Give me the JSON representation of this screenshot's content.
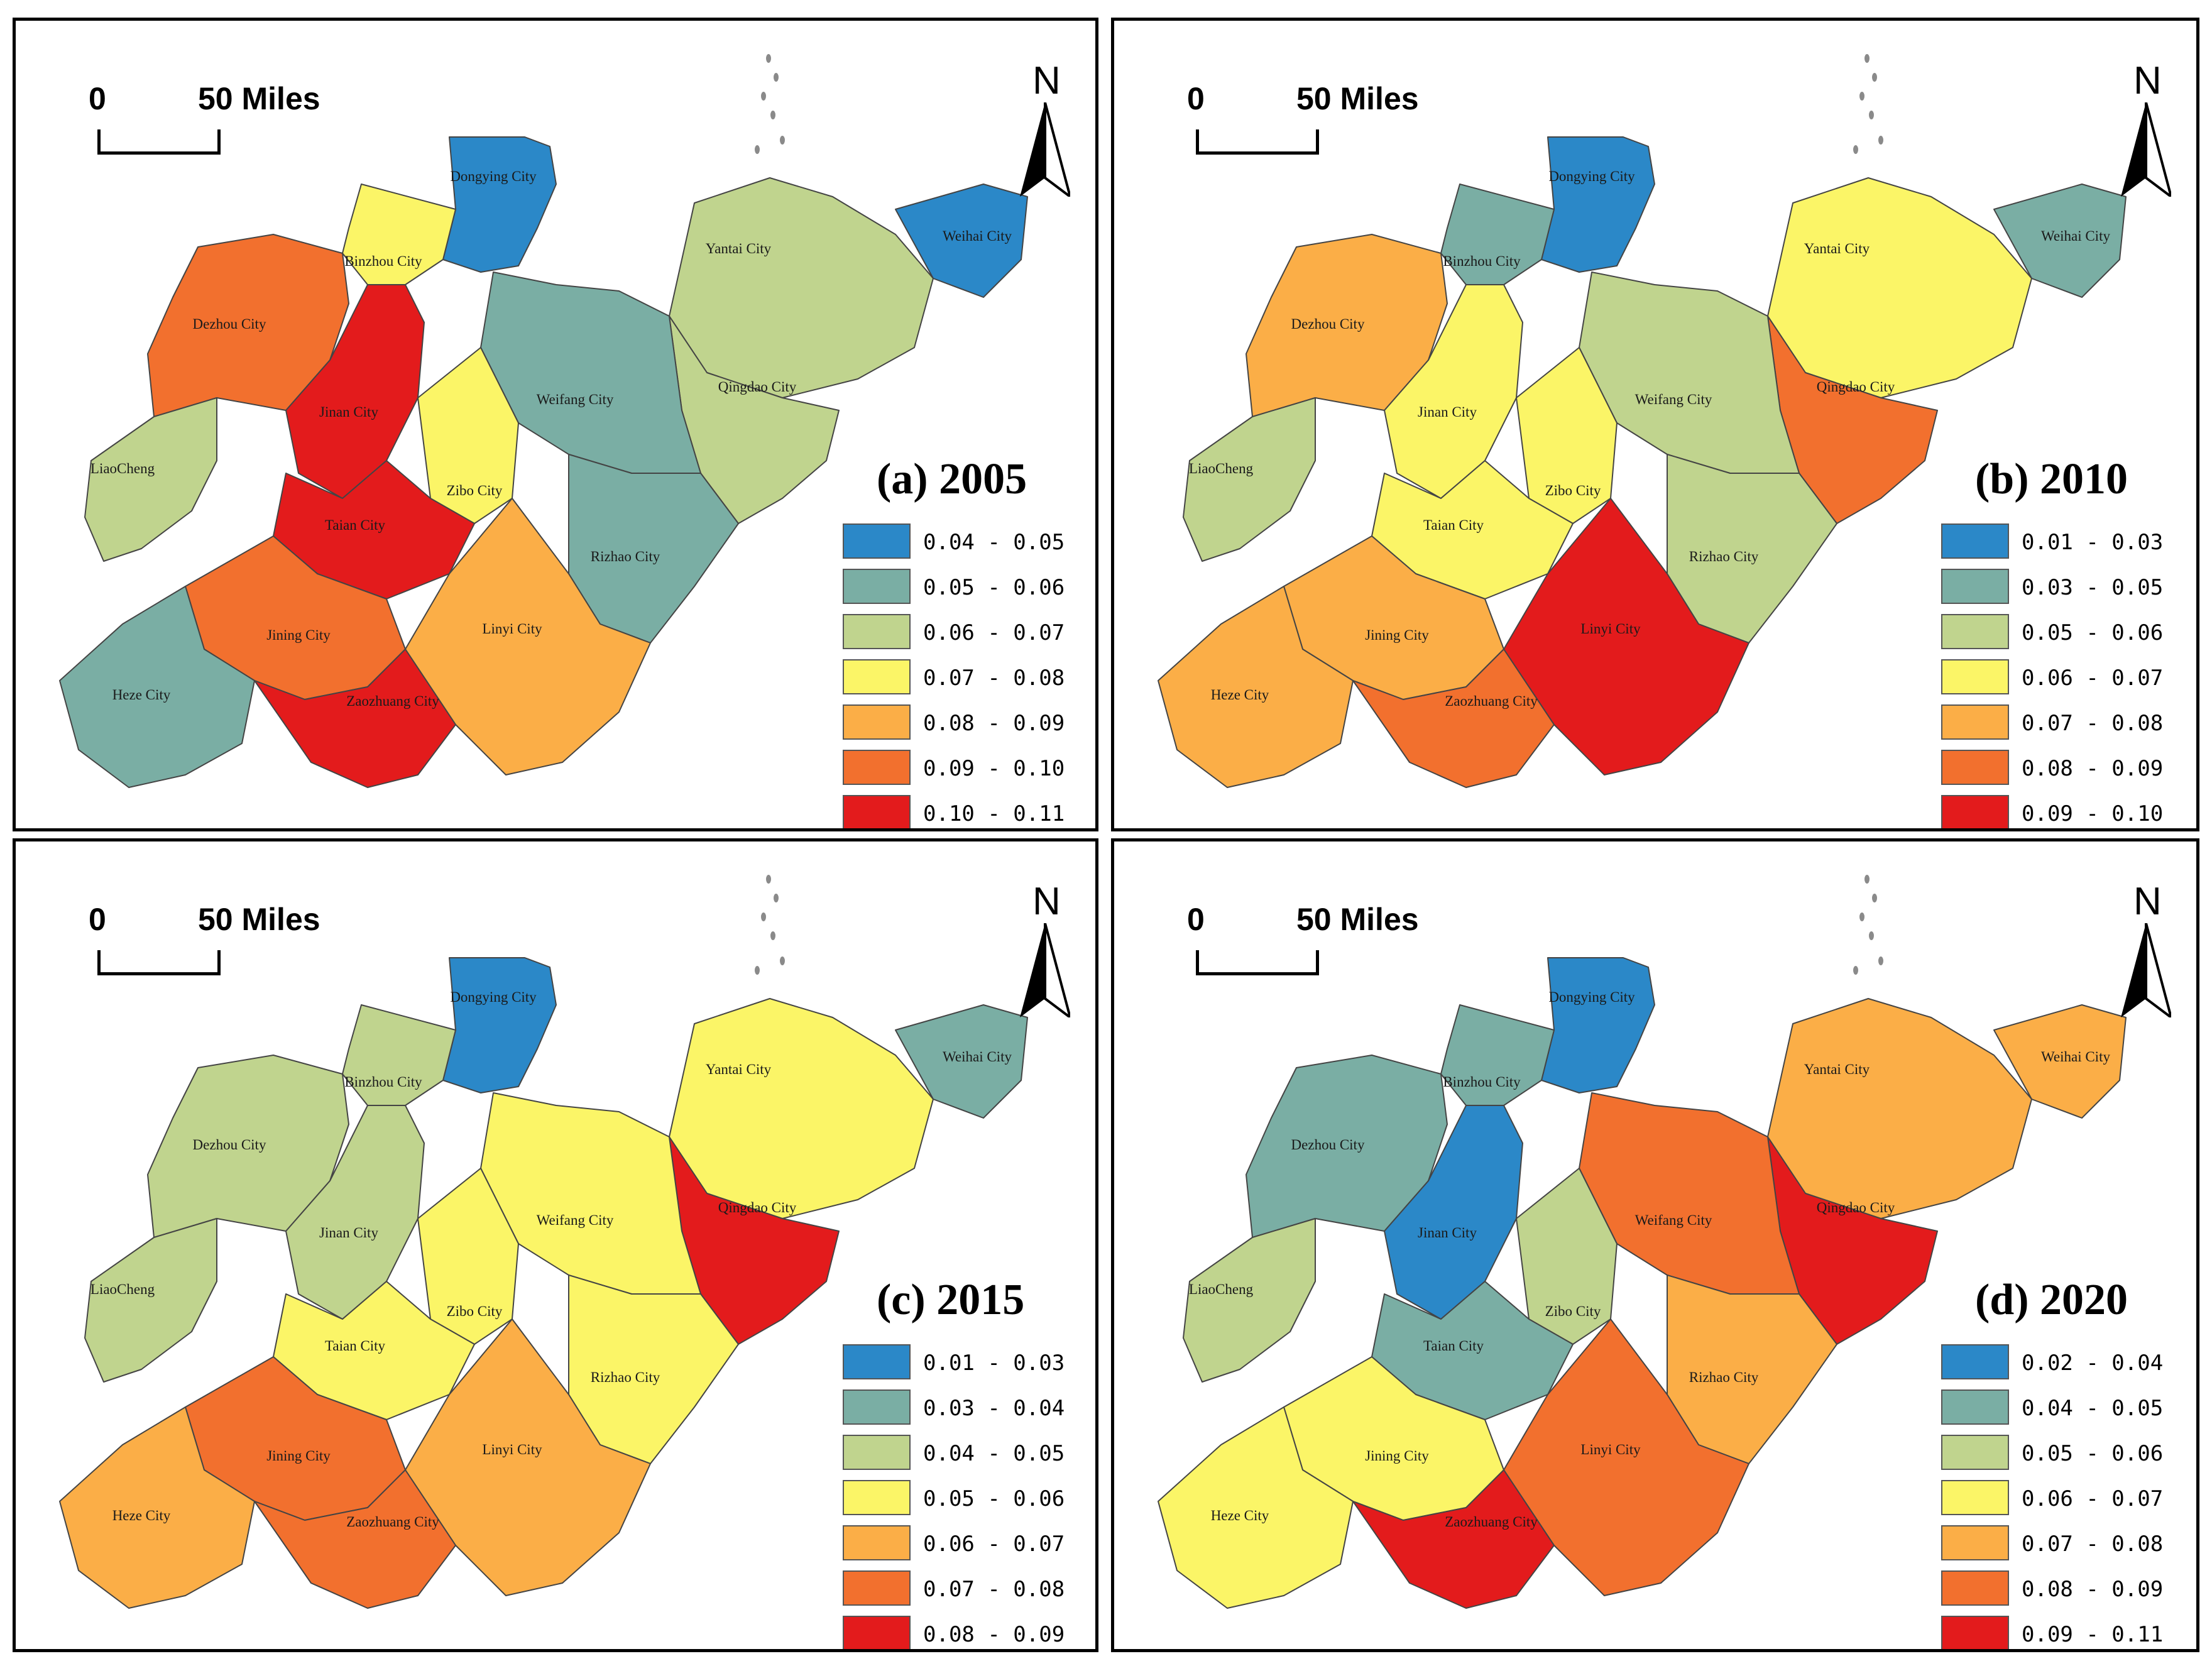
{
  "scale_bar": {
    "zero": "0",
    "distance": "50 Miles"
  },
  "north_label": "N",
  "cities": [
    "Dongying City",
    "Binzhou City",
    "Yantai City",
    "Weihai City",
    "Dezhou City",
    "Qingdao City",
    "Jinan City",
    "Weifang City",
    "LiaoCheng",
    "Zibo City",
    "Taian City",
    "Rizhao City",
    "Jining City",
    "Linyi City",
    "Heze City",
    "Zaozhuang City"
  ],
  "panels": [
    {
      "id": "a",
      "title": "(a) 2005",
      "legend": [
        {
          "label": "0.04 - 0.05",
          "color": "#2b88c8"
        },
        {
          "label": "0.05 - 0.06",
          "color": "#7aaea4"
        },
        {
          "label": "0.06 - 0.07",
          "color": "#c0d48e"
        },
        {
          "label": "0.07 - 0.08",
          "color": "#fbf567"
        },
        {
          "label": "0.08 - 0.09",
          "color": "#fbae47"
        },
        {
          "label": "0.09 - 0.10",
          "color": "#f2702e"
        },
        {
          "label": "0.10 - 0.11",
          "color": "#e31b1c"
        }
      ],
      "city_class": [
        0,
        3,
        2,
        0,
        5,
        2,
        6,
        1,
        2,
        3,
        6,
        1,
        5,
        4,
        1,
        6
      ]
    },
    {
      "id": "b",
      "title": "(b) 2010",
      "legend": [
        {
          "label": "0.01 - 0.03",
          "color": "#2b88c8"
        },
        {
          "label": "0.03 - 0.05",
          "color": "#7aaea4"
        },
        {
          "label": "0.05 - 0.06",
          "color": "#c0d48e"
        },
        {
          "label": "0.06 - 0.07",
          "color": "#fbf567"
        },
        {
          "label": "0.07 - 0.08",
          "color": "#fbae47"
        },
        {
          "label": "0.08 - 0.09",
          "color": "#f2702e"
        },
        {
          "label": "0.09 - 0.10",
          "color": "#e31b1c"
        }
      ],
      "city_class": [
        0,
        1,
        3,
        1,
        4,
        5,
        3,
        2,
        2,
        3,
        3,
        2,
        4,
        6,
        4,
        5
      ]
    },
    {
      "id": "c",
      "title": "(c) 2015",
      "legend": [
        {
          "label": "0.01 - 0.03",
          "color": "#2b88c8"
        },
        {
          "label": "0.03 - 0.04",
          "color": "#7aaea4"
        },
        {
          "label": "0.04 - 0.05",
          "color": "#c0d48e"
        },
        {
          "label": "0.05 - 0.06",
          "color": "#fbf567"
        },
        {
          "label": "0.06 - 0.07",
          "color": "#fbae47"
        },
        {
          "label": "0.07 - 0.08",
          "color": "#f2702e"
        },
        {
          "label": "0.08 - 0.09",
          "color": "#e31b1c"
        }
      ],
      "city_class": [
        0,
        2,
        3,
        1,
        2,
        6,
        2,
        3,
        2,
        3,
        3,
        3,
        5,
        4,
        4,
        5
      ]
    },
    {
      "id": "d",
      "title": "(d) 2020",
      "legend": [
        {
          "label": "0.02 - 0.04",
          "color": "#2b88c8"
        },
        {
          "label": "0.04 - 0.05",
          "color": "#7aaea4"
        },
        {
          "label": "0.05 - 0.06",
          "color": "#c0d48e"
        },
        {
          "label": "0.06 - 0.07",
          "color": "#fbf567"
        },
        {
          "label": "0.07 - 0.08",
          "color": "#fbae47"
        },
        {
          "label": "0.08 - 0.09",
          "color": "#f2702e"
        },
        {
          "label": "0.09 - 0.11",
          "color": "#e31b1c"
        }
      ],
      "city_class": [
        0,
        1,
        4,
        4,
        1,
        6,
        0,
        5,
        2,
        2,
        1,
        4,
        3,
        5,
        3,
        6
      ]
    }
  ]
}
